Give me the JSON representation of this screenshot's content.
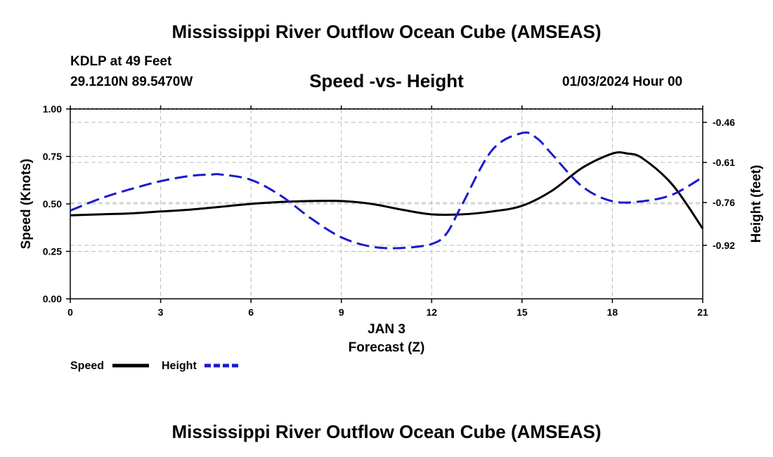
{
  "header": {
    "title": "Mississippi River Outflow Ocean Cube (AMSEAS)",
    "station": "KDLP at 49 Feet",
    "coords": "29.1210N  89.5470W",
    "subtitle": "Speed -vs- Height",
    "date": "01/03/2024 Hour 00"
  },
  "footer": {
    "title": "Mississippi River Outflow Ocean Cube (AMSEAS)"
  },
  "colors": {
    "speed": "#000000",
    "height": "#1a1acc",
    "grid": "#bbbbbb"
  },
  "chart_data": {
    "type": "line",
    "title": "Speed -vs- Height",
    "xlabel": "Forecast (Z)",
    "xsublabel": "JAN 3",
    "ylabel": "Speed (Knots)",
    "y2label": "Height (feet)",
    "xlim": [
      0,
      21
    ],
    "ylim": [
      0,
      1
    ],
    "y2lim": [
      -1.12,
      -0.41
    ],
    "x_ticks": [
      0,
      3,
      6,
      9,
      12,
      15,
      18,
      21
    ],
    "y_ticks": [
      0,
      0.25,
      0.5,
      0.75,
      1
    ],
    "y_tick_labels": [
      "0.00",
      "0.25",
      "0.50",
      "0.75",
      "1.00"
    ],
    "y2_ticks": [
      -0.46,
      -0.61,
      -0.76,
      -0.92
    ],
    "y2_tick_labels": [
      "-0.46",
      "-0.61",
      "-0.76",
      "-0.92"
    ],
    "grid": true,
    "legend": "bottom-left",
    "series": [
      {
        "name": "Speed",
        "axis": "left",
        "style": "solid",
        "x": [
          0,
          1,
          2,
          3,
          4,
          5,
          6,
          7,
          8,
          9,
          10,
          11,
          12,
          13,
          14,
          15,
          16,
          17,
          18,
          18.5,
          19,
          20,
          21
        ],
        "values": [
          0.44,
          0.445,
          0.45,
          0.46,
          0.47,
          0.485,
          0.5,
          0.51,
          0.515,
          0.515,
          0.5,
          0.47,
          0.445,
          0.445,
          0.46,
          0.49,
          0.57,
          0.69,
          0.765,
          0.765,
          0.74,
          0.6,
          0.37
        ]
      },
      {
        "name": "Height",
        "axis": "right",
        "style": "dashed",
        "x": [
          0,
          1,
          2,
          3,
          4,
          4.7,
          5,
          6,
          7,
          8,
          9,
          10,
          11,
          12,
          12.5,
          13,
          14,
          15,
          15.5,
          16,
          17,
          18,
          19,
          20,
          21
        ],
        "values": [
          -0.79,
          -0.745,
          -0.71,
          -0.68,
          -0.66,
          -0.655,
          -0.655,
          -0.675,
          -0.735,
          -0.82,
          -0.89,
          -0.925,
          -0.93,
          -0.915,
          -0.875,
          -0.77,
          -0.565,
          -0.5,
          -0.52,
          -0.58,
          -0.7,
          -0.755,
          -0.755,
          -0.73,
          -0.665
        ]
      }
    ]
  }
}
